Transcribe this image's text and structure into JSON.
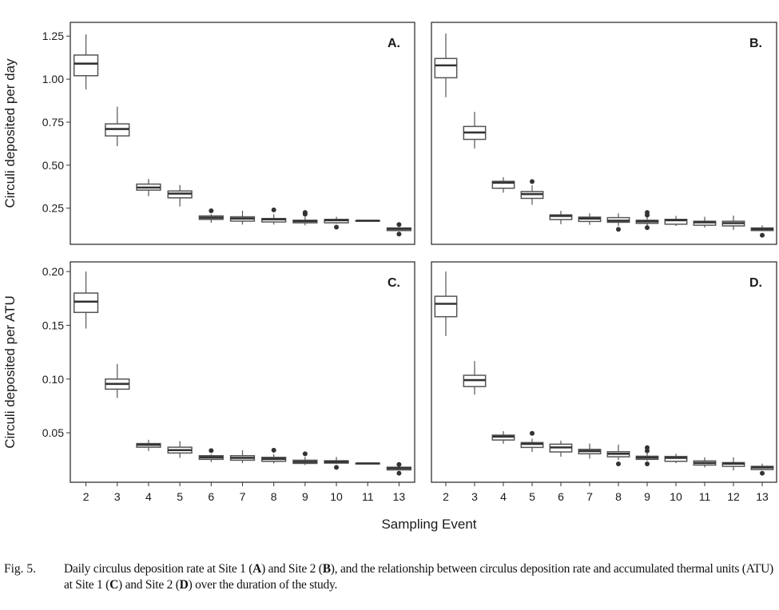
{
  "caption": {
    "fig": "Fig. 5.",
    "parts": [
      {
        "t": "Daily circulus deposition rate at Site 1 (",
        "b": false
      },
      {
        "t": "A",
        "b": true
      },
      {
        "t": ") and Site 2 (",
        "b": false
      },
      {
        "t": "B",
        "b": true
      },
      {
        "t": "), and the relationship between circulus deposition rate and accumulated thermal units (ATU) at Site 1 (",
        "b": false
      },
      {
        "t": "C",
        "b": true
      },
      {
        "t": ") and Site 2 (",
        "b": false
      },
      {
        "t": "D",
        "b": true
      },
      {
        "t": ") over the duration of the study.",
        "b": false
      }
    ]
  },
  "chart_data": [
    {
      "type": "box",
      "panel": "A.",
      "row": 0,
      "col": 0,
      "ylabel": "Circuli deposited per day",
      "xlabel": "Sampling Event",
      "ylim": [
        0.04,
        1.33
      ],
      "yticks": [
        "0.25",
        "0.50",
        "0.75",
        "1.00",
        "1.25"
      ],
      "categories": [
        "2",
        "3",
        "4",
        "5",
        "6",
        "7",
        "8",
        "9",
        "10",
        "11",
        "13"
      ],
      "boxes": [
        {
          "lo": 0.94,
          "q1": 1.02,
          "med": 1.09,
          "q3": 1.14,
          "hi": 1.26,
          "out": []
        },
        {
          "lo": 0.61,
          "q1": 0.67,
          "med": 0.71,
          "q3": 0.74,
          "hi": 0.84,
          "out": []
        },
        {
          "lo": 0.32,
          "q1": 0.355,
          "med": 0.37,
          "q3": 0.39,
          "hi": 0.42,
          "out": []
        },
        {
          "lo": 0.26,
          "q1": 0.31,
          "med": 0.335,
          "q3": 0.35,
          "hi": 0.385,
          "out": []
        },
        {
          "lo": 0.165,
          "q1": 0.185,
          "med": 0.195,
          "q3": 0.205,
          "hi": 0.215,
          "out": [
            0.235
          ]
        },
        {
          "lo": 0.155,
          "q1": 0.175,
          "med": 0.19,
          "q3": 0.2,
          "hi": 0.235,
          "out": []
        },
        {
          "lo": 0.155,
          "q1": 0.17,
          "med": 0.185,
          "q3": 0.19,
          "hi": 0.215,
          "out": [
            0.24
          ]
        },
        {
          "lo": 0.15,
          "q1": 0.165,
          "med": 0.175,
          "q3": 0.18,
          "hi": 0.2,
          "out": [
            0.215,
            0.225
          ]
        },
        {
          "lo": 0.16,
          "q1": 0.165,
          "med": 0.18,
          "q3": 0.185,
          "hi": 0.2,
          "out": [
            0.14
          ]
        },
        {
          "lo": 0.177,
          "q1": 0.177,
          "med": 0.177,
          "q3": 0.177,
          "hi": 0.177,
          "out": []
        },
        {
          "lo": 0.12,
          "q1": 0.12,
          "med": 0.13,
          "q3": 0.135,
          "hi": 0.14,
          "out": [
            0.1,
            0.155
          ]
        }
      ]
    },
    {
      "type": "box",
      "panel": "B.",
      "row": 0,
      "col": 1,
      "ylim": [
        0.04,
        1.33
      ],
      "yticks": [],
      "categories": [
        "2",
        "3",
        "4",
        "5",
        "6",
        "7",
        "8",
        "9",
        "10",
        "11",
        "12",
        "13"
      ],
      "boxes": [
        {
          "lo": 0.895,
          "q1": 1.008,
          "med": 1.08,
          "q3": 1.12,
          "hi": 1.265,
          "out": []
        },
        {
          "lo": 0.597,
          "q1": 0.65,
          "med": 0.69,
          "q3": 0.725,
          "hi": 0.81,
          "out": []
        },
        {
          "lo": 0.34,
          "q1": 0.366,
          "med": 0.398,
          "q3": 0.406,
          "hi": 0.43,
          "out": []
        },
        {
          "lo": 0.27,
          "q1": 0.307,
          "med": 0.332,
          "q3": 0.347,
          "hi": 0.383,
          "out": [
            0.405
          ]
        },
        {
          "lo": 0.157,
          "q1": 0.184,
          "med": 0.205,
          "q3": 0.211,
          "hi": 0.235,
          "out": []
        },
        {
          "lo": 0.153,
          "q1": 0.173,
          "med": 0.19,
          "q3": 0.198,
          "hi": 0.22,
          "out": []
        },
        {
          "lo": 0.147,
          "q1": 0.168,
          "med": 0.177,
          "q3": 0.195,
          "hi": 0.22,
          "out": [
            0.127
          ]
        },
        {
          "lo": 0.147,
          "q1": 0.162,
          "med": 0.173,
          "q3": 0.18,
          "hi": 0.2,
          "out": [
            0.137,
            0.21,
            0.225
          ]
        },
        {
          "lo": 0.147,
          "q1": 0.157,
          "med": 0.18,
          "q3": 0.185,
          "hi": 0.205,
          "out": []
        },
        {
          "lo": 0.137,
          "q1": 0.151,
          "med": 0.168,
          "q3": 0.174,
          "hi": 0.2,
          "out": []
        },
        {
          "lo": 0.124,
          "q1": 0.147,
          "med": 0.163,
          "q3": 0.174,
          "hi": 0.207,
          "out": []
        },
        {
          "lo": 0.12,
          "q1": 0.12,
          "med": 0.129,
          "q3": 0.135,
          "hi": 0.15,
          "out": [
            0.093
          ]
        }
      ]
    },
    {
      "type": "box",
      "panel": "C.",
      "row": 1,
      "col": 0,
      "ylabel": "Circuli deposited per ATU",
      "ylim": [
        0.004,
        0.209
      ],
      "yticks": [
        "0.05",
        "0.10",
        "0.15",
        "0.20"
      ],
      "categories": [
        "2",
        "3",
        "4",
        "5",
        "6",
        "7",
        "8",
        "9",
        "10",
        "11",
        "13"
      ],
      "boxes": [
        {
          "lo": 0.147,
          "q1": 0.162,
          "med": 0.172,
          "q3": 0.18,
          "hi": 0.2,
          "out": []
        },
        {
          "lo": 0.0825,
          "q1": 0.0906,
          "med": 0.0955,
          "q3": 0.1,
          "hi": 0.114,
          "out": []
        },
        {
          "lo": 0.033,
          "q1": 0.0366,
          "med": 0.0389,
          "q3": 0.04,
          "hi": 0.0435,
          "out": []
        },
        {
          "lo": 0.0267,
          "q1": 0.0312,
          "med": 0.0339,
          "q3": 0.0366,
          "hi": 0.0423,
          "out": []
        },
        {
          "lo": 0.0228,
          "q1": 0.0253,
          "med": 0.0272,
          "q3": 0.0287,
          "hi": 0.03,
          "out": [
            0.0334
          ]
        },
        {
          "lo": 0.0218,
          "q1": 0.0245,
          "med": 0.0267,
          "q3": 0.0287,
          "hi": 0.0338,
          "out": []
        },
        {
          "lo": 0.0215,
          "q1": 0.0235,
          "med": 0.0257,
          "q3": 0.0272,
          "hi": 0.03,
          "out": [
            0.0338
          ]
        },
        {
          "lo": 0.02,
          "q1": 0.0215,
          "med": 0.023,
          "q3": 0.0245,
          "hi": 0.0275,
          "out": [
            0.0305
          ]
        },
        {
          "lo": 0.021,
          "q1": 0.0218,
          "med": 0.023,
          "q3": 0.024,
          "hi": 0.0275,
          "out": [
            0.0178
          ]
        },
        {
          "lo": 0.0215,
          "q1": 0.0215,
          "med": 0.0215,
          "q3": 0.0215,
          "hi": 0.0215,
          "out": []
        },
        {
          "lo": 0.015,
          "q1": 0.0155,
          "med": 0.017,
          "q3": 0.018,
          "hi": 0.019,
          "out": [
            0.0124,
            0.0205
          ]
        }
      ]
    },
    {
      "type": "box",
      "panel": "D.",
      "row": 1,
      "col": 1,
      "ylim": [
        0.004,
        0.209
      ],
      "yticks": [],
      "categories": [
        "2",
        "3",
        "4",
        "5",
        "6",
        "7",
        "8",
        "9",
        "10",
        "11",
        "12",
        "13"
      ],
      "boxes": [
        {
          "lo": 0.14,
          "q1": 0.158,
          "med": 0.17,
          "q3": 0.177,
          "hi": 0.2,
          "out": []
        },
        {
          "lo": 0.0855,
          "q1": 0.093,
          "med": 0.099,
          "q3": 0.1035,
          "hi": 0.1167,
          "out": []
        },
        {
          "lo": 0.0398,
          "q1": 0.0433,
          "med": 0.0465,
          "q3": 0.0478,
          "hi": 0.0515,
          "out": []
        },
        {
          "lo": 0.0322,
          "q1": 0.0364,
          "med": 0.0397,
          "q3": 0.0409,
          "hi": 0.0445,
          "out": [
            0.0495
          ]
        },
        {
          "lo": 0.0277,
          "q1": 0.0322,
          "med": 0.0364,
          "q3": 0.0394,
          "hi": 0.0427,
          "out": []
        },
        {
          "lo": 0.026,
          "q1": 0.0305,
          "med": 0.033,
          "q3": 0.0346,
          "hi": 0.04,
          "out": []
        },
        {
          "lo": 0.0248,
          "q1": 0.0277,
          "med": 0.0305,
          "q3": 0.0324,
          "hi": 0.039,
          "out": [
            0.0211
          ]
        },
        {
          "lo": 0.024,
          "q1": 0.0253,
          "med": 0.027,
          "q3": 0.0282,
          "hi": 0.031,
          "out": [
            0.0211,
            0.0332,
            0.0362
          ]
        },
        {
          "lo": 0.0218,
          "q1": 0.0235,
          "med": 0.0267,
          "q3": 0.028,
          "hi": 0.0305,
          "out": []
        },
        {
          "lo": 0.0178,
          "q1": 0.02,
          "med": 0.022,
          "q3": 0.0238,
          "hi": 0.0272,
          "out": []
        },
        {
          "lo": 0.015,
          "q1": 0.0188,
          "med": 0.0213,
          "q3": 0.0223,
          "hi": 0.0272,
          "out": []
        },
        {
          "lo": 0.0158,
          "q1": 0.0158,
          "med": 0.0178,
          "q3": 0.0188,
          "hi": 0.0213,
          "out": [
            0.0124
          ]
        }
      ]
    }
  ],
  "colors": {
    "box_stroke": "#555555",
    "median": "#333333",
    "frame": "#333333",
    "outlier": "#333333"
  }
}
